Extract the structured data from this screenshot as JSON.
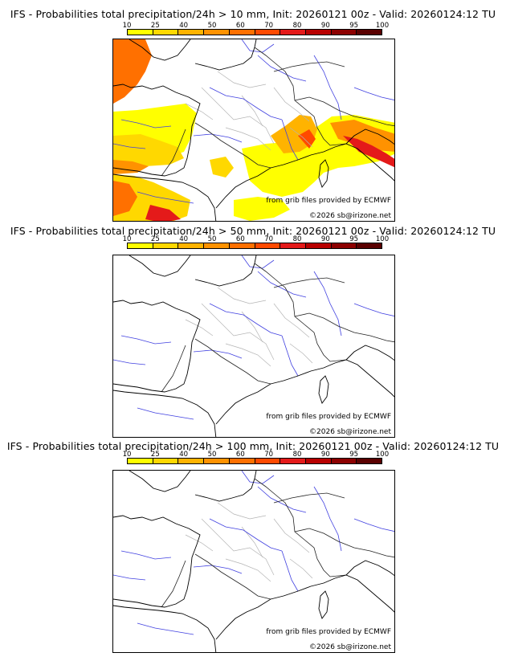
{
  "panels": [
    {
      "title": "IFS - Probabilities total precipitation/24h > 10 mm, Init: 20260121 00z - Valid: 20260124:12 TU",
      "threshold_mm": 10,
      "has_precip": true
    },
    {
      "title": "IFS - Probabilities total precipitation/24h > 50 mm, Init: 20260121 00z - Valid: 20260124:12 TU",
      "threshold_mm": 50,
      "has_precip": false
    },
    {
      "title": "IFS - Probabilities total precipitation/24h > 100 mm, Init: 20260121 00z - Valid: 20260124:12 TU",
      "threshold_mm": 100,
      "has_precip": false
    }
  ],
  "colorbar": {
    "labels": [
      "10",
      "25",
      "40",
      "50",
      "60",
      "70",
      "80",
      "90",
      "95",
      "100"
    ],
    "colors": [
      "#ffff00",
      "#ffd800",
      "#ffb300",
      "#ff9200",
      "#ff7000",
      "#ff4a00",
      "#e41a1a",
      "#b80000",
      "#8c0000",
      "#5a0000"
    ]
  },
  "credits": {
    "source": "from grib files provided by ECMWF",
    "copyright": "©2026 sb@irizone.net"
  }
}
